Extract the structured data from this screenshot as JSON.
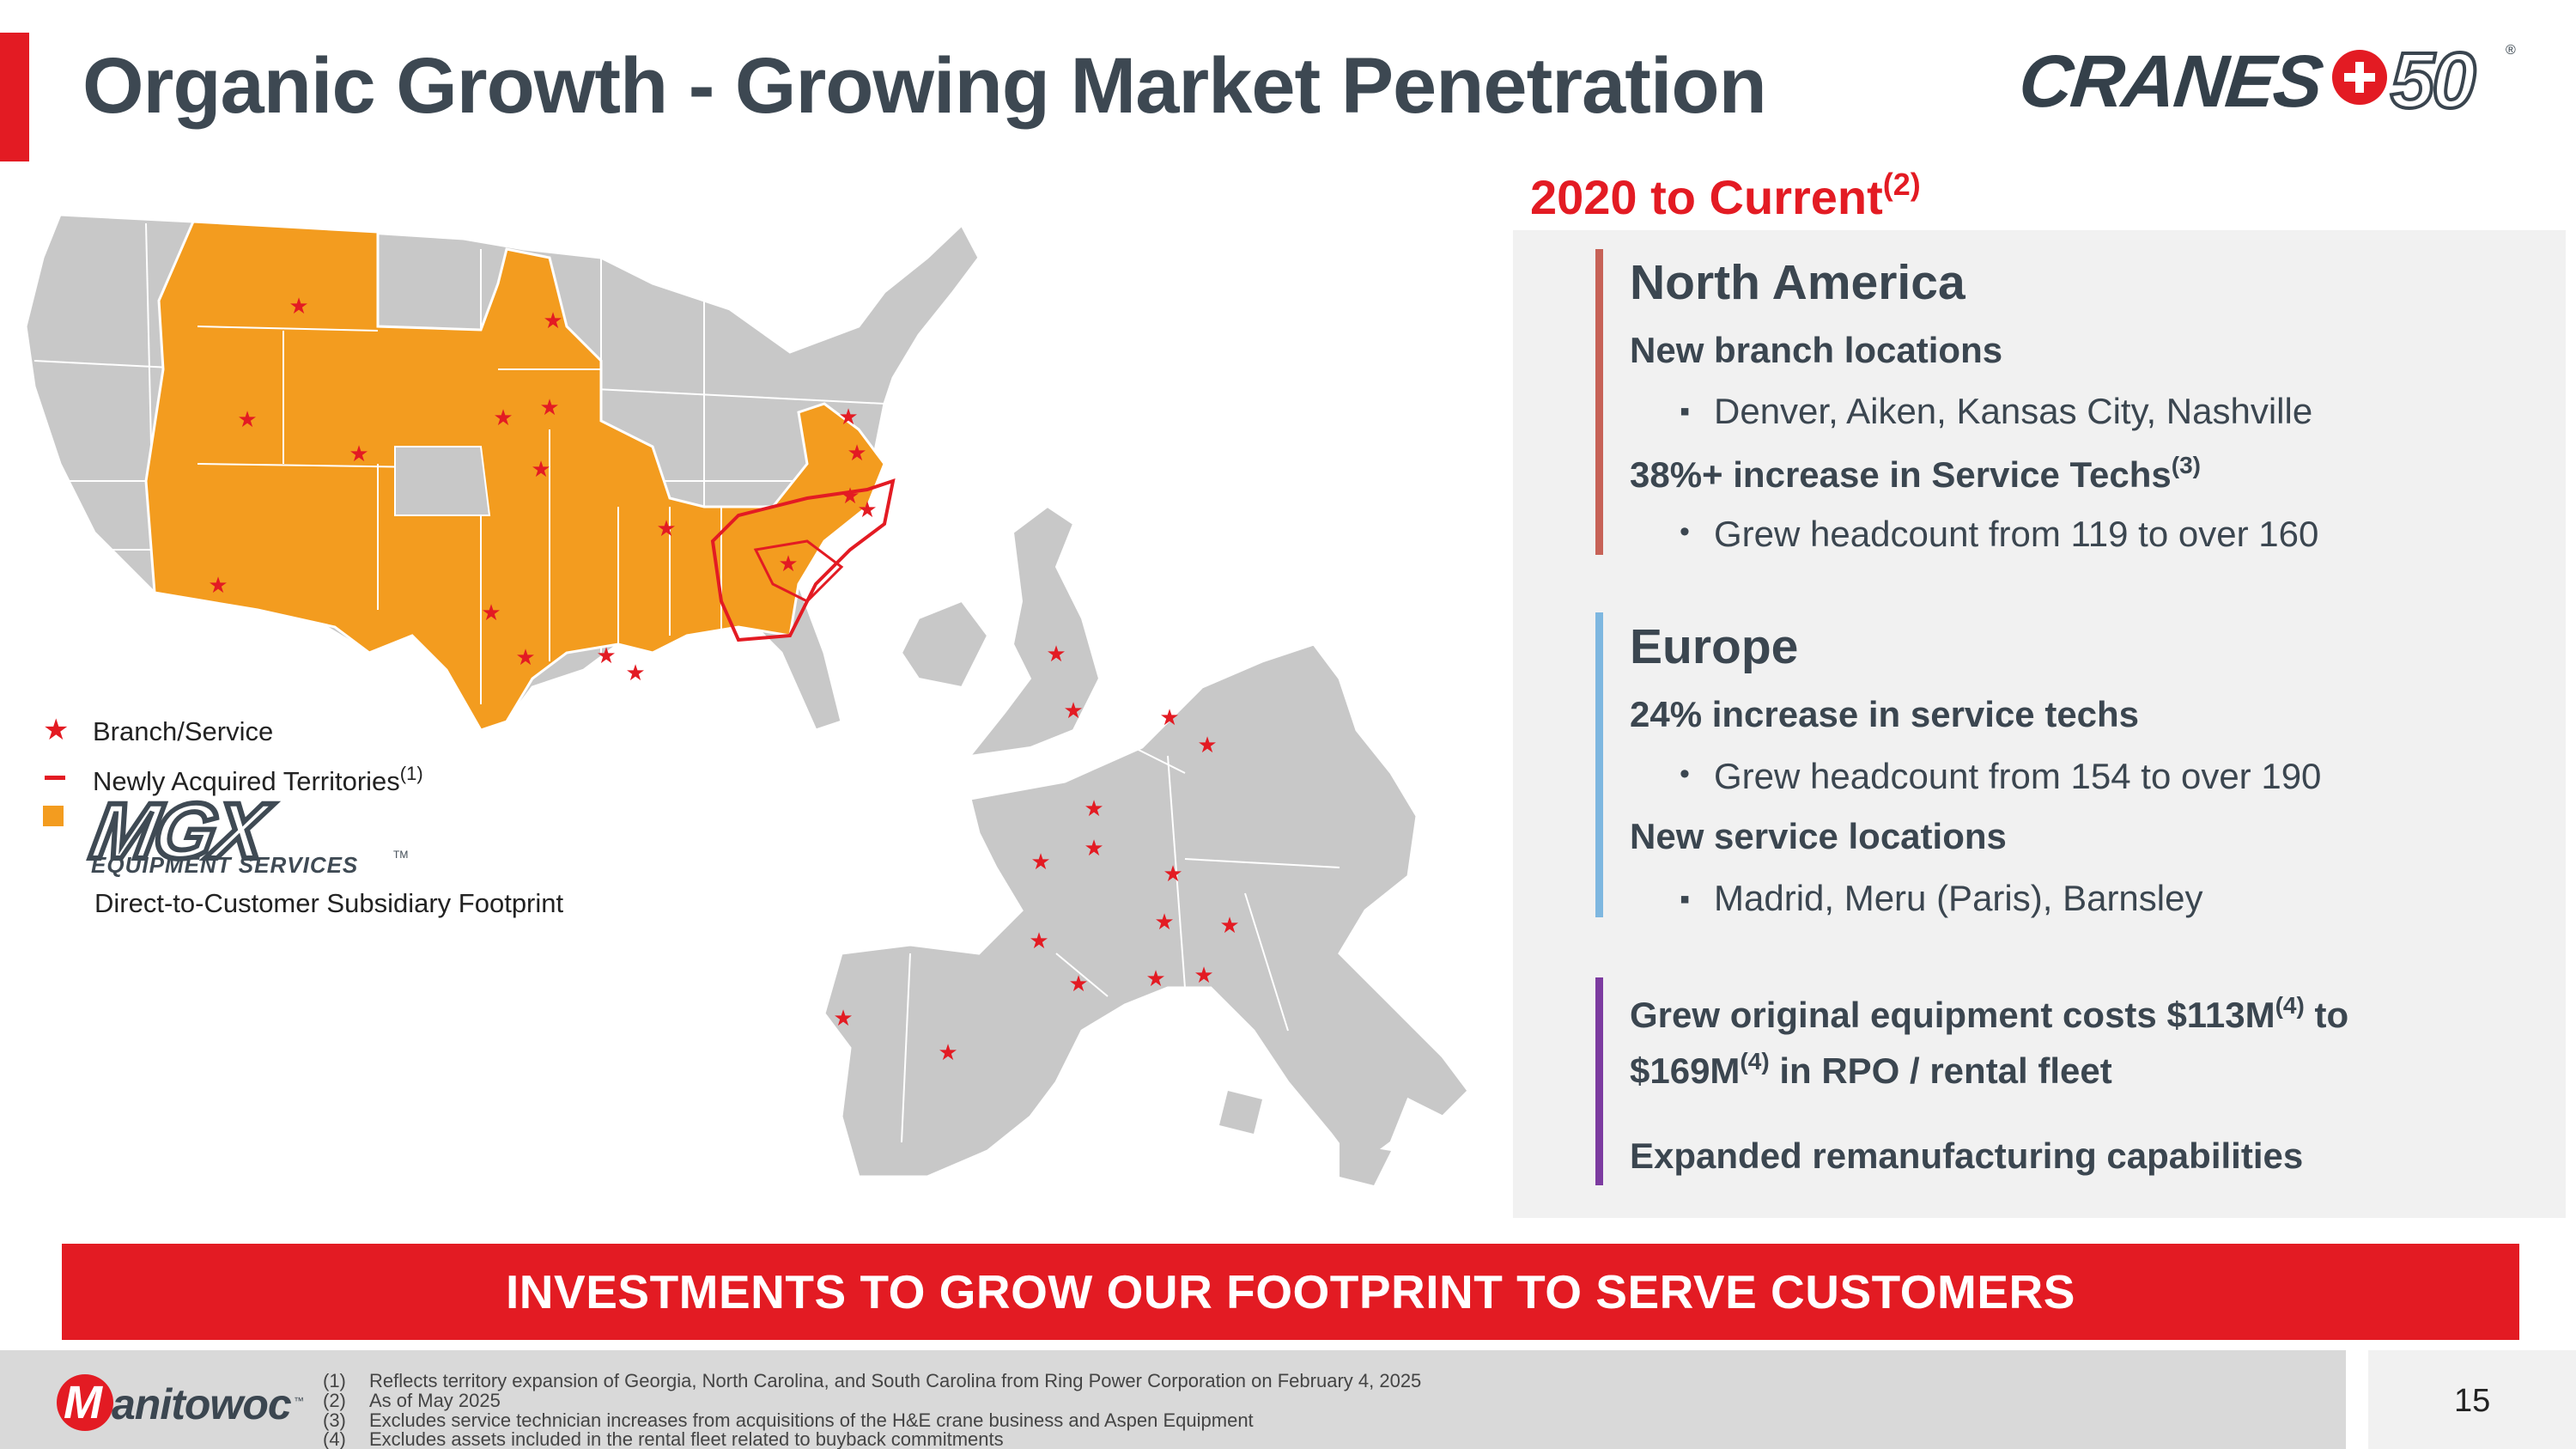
{
  "title": "Organic Growth - Growing Market Penetration",
  "brand_logo": {
    "text": "CRANES",
    "number": "50",
    "reg": "®"
  },
  "period": {
    "label": "2020 to Current",
    "note": "(2)"
  },
  "north_america": {
    "heading": "North America",
    "branch_heading": "New branch locations",
    "branch_mark": "▪",
    "branch_item": "Denver, Aiken, Kansas City, Nashville",
    "techs_heading": "38%+ increase in Service Techs",
    "techs_note": "(3)",
    "techs_mark": "•",
    "techs_item": "Grew headcount from 119 to over 160"
  },
  "europe": {
    "heading": "Europe",
    "techs_heading": "24% increase in service techs",
    "techs_mark": "•",
    "techs_item": "Grew headcount from 154 to over 190",
    "service_heading": "New service locations",
    "service_mark": "▪",
    "service_item": "Madrid, Meru (Paris), Barnsley"
  },
  "equipment": {
    "line1_a": "Grew original equipment costs $113M",
    "note_a": "(4)",
    "line1_b": " to",
    "line2_a": "$169M",
    "note_b": "(4)",
    "line2_b": " in RPO / rental fleet",
    "remanufacturing": "Expanded remanufacturing capabilities"
  },
  "legend": {
    "branch": "Branch/Service",
    "acquired": "Newly Acquired Territories",
    "acquired_note": "(1)",
    "mgx_logo": "MGX",
    "mgx_sub": "EQUIPMENT SERVICES",
    "mgx_tm": "TM",
    "subsidiary": "Direct-to-Customer Subsidiary Footprint"
  },
  "banner": "INVESTMENTS TO GROW OUR FOOTPRINT TO SERVE CUSTOMERS",
  "footer": {
    "logo_m": "M",
    "logo_rest": "anitowoc",
    "logo_tm": "™",
    "page_number": "15",
    "footnotes": [
      {
        "num": "(1)",
        "text": "Reflects territory expansion of Georgia, North Carolina, and South Carolina from Ring Power Corporation on February 4, 2025"
      },
      {
        "num": "(2)",
        "text": "As of May 2025"
      },
      {
        "num": "(3)",
        "text": "Excludes service technician increases from acquisitions of the H&E crane business and Aspen Equipment"
      },
      {
        "num": "(4)",
        "text": "Excludes assets included in the rental fleet related to buyback commitments"
      }
    ]
  },
  "colors": {
    "accent_red": "#e31b23",
    "territory_orange": "#f39c1f",
    "map_gray": "#c8c8c8",
    "text_dark": "#3b4650",
    "na_line": "#c76257",
    "eu_line": "#7eb7e0",
    "equipment_line": "#7c3ba0"
  }
}
